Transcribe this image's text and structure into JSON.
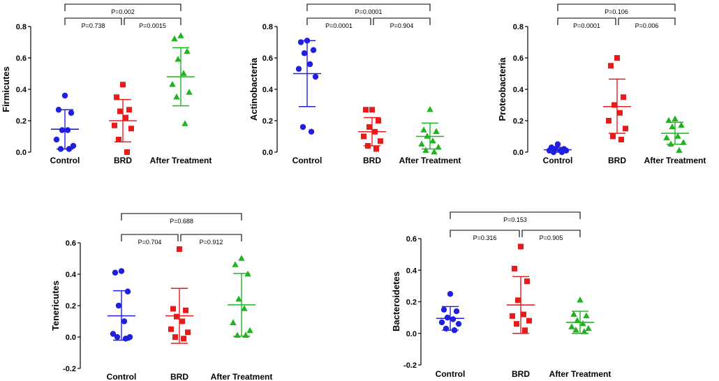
{
  "figure": {
    "colors": {
      "Control": "#1f1fe0",
      "BRD": "#e81b1b",
      "After Treatment": "#1fb41f"
    },
    "markers": {
      "Control": "circle",
      "BRD": "square",
      "After Treatment": "triangle"
    }
  },
  "chart_data": [
    {
      "type": "scatter",
      "ylabel": "Firmicutes",
      "categories": [
        "Control",
        "BRD",
        "After Treatment"
      ],
      "ylim": [
        0,
        0.8
      ],
      "yticks": [
        0.0,
        0.2,
        0.4,
        0.6,
        0.8
      ],
      "tick_decimals": 1,
      "series": [
        {
          "name": "Control",
          "values": [
            0.36,
            0.27,
            0.25,
            0.14,
            0.14,
            0.08,
            0.04,
            0.02,
            0.02
          ],
          "mean": 0.146,
          "sd_low": 0.02,
          "sd_high": 0.27
        },
        {
          "name": "BRD",
          "values": [
            0.43,
            0.35,
            0.27,
            0.26,
            0.22,
            0.17,
            0.15,
            0.08,
            0.0
          ],
          "mean": 0.2,
          "sd_low": 0.065,
          "sd_high": 0.335
        },
        {
          "name": "After Treatment",
          "values": [
            0.74,
            0.72,
            0.64,
            0.59,
            0.5,
            0.43,
            0.38,
            0.35,
            0.18
          ],
          "mean": 0.48,
          "sd_low": 0.295,
          "sd_high": 0.665
        }
      ],
      "comparisons": [
        {
          "label": "P=0.738",
          "from": 0,
          "to": 1,
          "level": 1
        },
        {
          "label": "P=0.0015",
          "from": 1,
          "to": 2,
          "level": 1
        },
        {
          "label": "P=0.002",
          "from": 0,
          "to": 2,
          "level": 2
        }
      ]
    },
    {
      "type": "scatter",
      "ylabel": "Actinobacteria",
      "categories": [
        "Control",
        "BRD",
        "After Treatment"
      ],
      "ylim": [
        0,
        0.8
      ],
      "yticks": [
        0.0,
        0.2,
        0.4,
        0.6,
        0.8
      ],
      "tick_decimals": 1,
      "series": [
        {
          "name": "Control",
          "values": [
            0.71,
            0.7,
            0.65,
            0.63,
            0.56,
            0.53,
            0.48,
            0.16,
            0.13
          ],
          "mean": 0.5,
          "sd_low": 0.29,
          "sd_high": 0.71
        },
        {
          "name": "BRD",
          "values": [
            0.27,
            0.27,
            0.2,
            0.16,
            0.13,
            0.1,
            0.07,
            0.04,
            0.02
          ],
          "mean": 0.13,
          "sd_low": 0.04,
          "sd_high": 0.22
        },
        {
          "name": "After Treatment",
          "values": [
            0.27,
            0.14,
            0.13,
            0.1,
            0.07,
            0.05,
            0.03,
            0.01,
            0.0
          ],
          "mean": 0.1,
          "sd_low": 0.02,
          "sd_high": 0.185
        }
      ],
      "comparisons": [
        {
          "label": "P=0.0001",
          "from": 0,
          "to": 1,
          "level": 1
        },
        {
          "label": "P=0.904",
          "from": 1,
          "to": 2,
          "level": 1
        },
        {
          "label": "P=0.0001",
          "from": 0,
          "to": 2,
          "level": 2
        }
      ]
    },
    {
      "type": "scatter",
      "ylabel": "Proteobacteria",
      "categories": [
        "Control",
        "BRD",
        "After Treatment"
      ],
      "ylim": [
        0,
        0.8
      ],
      "yticks": [
        0.0,
        0.2,
        0.4,
        0.6,
        0.8
      ],
      "tick_decimals": 1,
      "series": [
        {
          "name": "Control",
          "values": [
            0.05,
            0.03,
            0.02,
            0.02,
            0.01,
            0.01,
            0.01,
            0.0,
            0.0
          ],
          "mean": 0.015,
          "sd_low": 0.0,
          "sd_high": 0.03
        },
        {
          "name": "BRD",
          "values": [
            0.6,
            0.55,
            0.35,
            0.3,
            0.25,
            0.2,
            0.15,
            0.1,
            0.08
          ],
          "mean": 0.29,
          "sd_low": 0.12,
          "sd_high": 0.465
        },
        {
          "name": "After Treatment",
          "values": [
            0.21,
            0.2,
            0.17,
            0.16,
            0.1,
            0.09,
            0.06,
            0.05,
            0.01
          ],
          "mean": 0.12,
          "sd_low": 0.05,
          "sd_high": 0.19
        }
      ],
      "comparisons": [
        {
          "label": "P=0.0001",
          "from": 0,
          "to": 1,
          "level": 1
        },
        {
          "label": "P=0.006",
          "from": 1,
          "to": 2,
          "level": 1
        },
        {
          "label": "P=0.106",
          "from": 0,
          "to": 2,
          "level": 2
        }
      ]
    },
    {
      "type": "scatter",
      "ylabel": "Tenericutes",
      "categories": [
        "Control",
        "BRD",
        "After Treatment"
      ],
      "ylim": [
        -0.2,
        0.6
      ],
      "yticks": [
        -0.2,
        0.0,
        0.2,
        0.4,
        0.6
      ],
      "tick_decimals": 1,
      "series": [
        {
          "name": "Control",
          "values": [
            0.42,
            0.41,
            0.29,
            0.2,
            0.1,
            0.02,
            0.0,
            0.0,
            -0.01
          ],
          "mean": 0.135,
          "sd_low": -0.02,
          "sd_high": 0.295
        },
        {
          "name": "BRD",
          "values": [
            0.56,
            0.18,
            0.17,
            0.13,
            0.1,
            0.05,
            0.03,
            0.0,
            -0.01
          ],
          "mean": 0.135,
          "sd_low": -0.04,
          "sd_high": 0.31
        },
        {
          "name": "After Treatment",
          "values": [
            0.5,
            0.46,
            0.4,
            0.24,
            0.18,
            0.09,
            0.04,
            0.01,
            0.01
          ],
          "mean": 0.205,
          "sd_low": 0.005,
          "sd_high": 0.405
        }
      ],
      "comparisons": [
        {
          "label": "P=0.704",
          "from": 0,
          "to": 1,
          "level": 1
        },
        {
          "label": "P=0.912",
          "from": 1,
          "to": 2,
          "level": 1
        },
        {
          "label": "P=0.688",
          "from": 0,
          "to": 2,
          "level": 2
        }
      ]
    },
    {
      "type": "scatter",
      "ylabel": "Bacteroidetes",
      "categories": [
        "Control",
        "BRD",
        "After Treatment"
      ],
      "ylim": [
        -0.2,
        0.6
      ],
      "yticks": [
        -0.2,
        0.0,
        0.2,
        0.4,
        0.6
      ],
      "tick_decimals": 1,
      "series": [
        {
          "name": "Control",
          "values": [
            0.25,
            0.15,
            0.14,
            0.1,
            0.09,
            0.07,
            0.06,
            0.03,
            0.02
          ],
          "mean": 0.095,
          "sd_low": 0.02,
          "sd_high": 0.17
        },
        {
          "name": "BRD",
          "values": [
            0.55,
            0.41,
            0.33,
            0.21,
            0.12,
            0.11,
            0.08,
            0.06,
            0.02
          ],
          "mean": 0.18,
          "sd_low": 0.0,
          "sd_high": 0.36
        },
        {
          "name": "After Treatment",
          "values": [
            0.21,
            0.12,
            0.11,
            0.08,
            0.06,
            0.04,
            0.03,
            0.02,
            0.01
          ],
          "mean": 0.07,
          "sd_low": 0.0,
          "sd_high": 0.14
        }
      ],
      "comparisons": [
        {
          "label": "P=0.316",
          "from": 0,
          "to": 1,
          "level": 1
        },
        {
          "label": "P=0.905",
          "from": 1,
          "to": 2,
          "level": 1
        },
        {
          "label": "P=0.153",
          "from": 0,
          "to": 2,
          "level": 2
        }
      ]
    }
  ]
}
